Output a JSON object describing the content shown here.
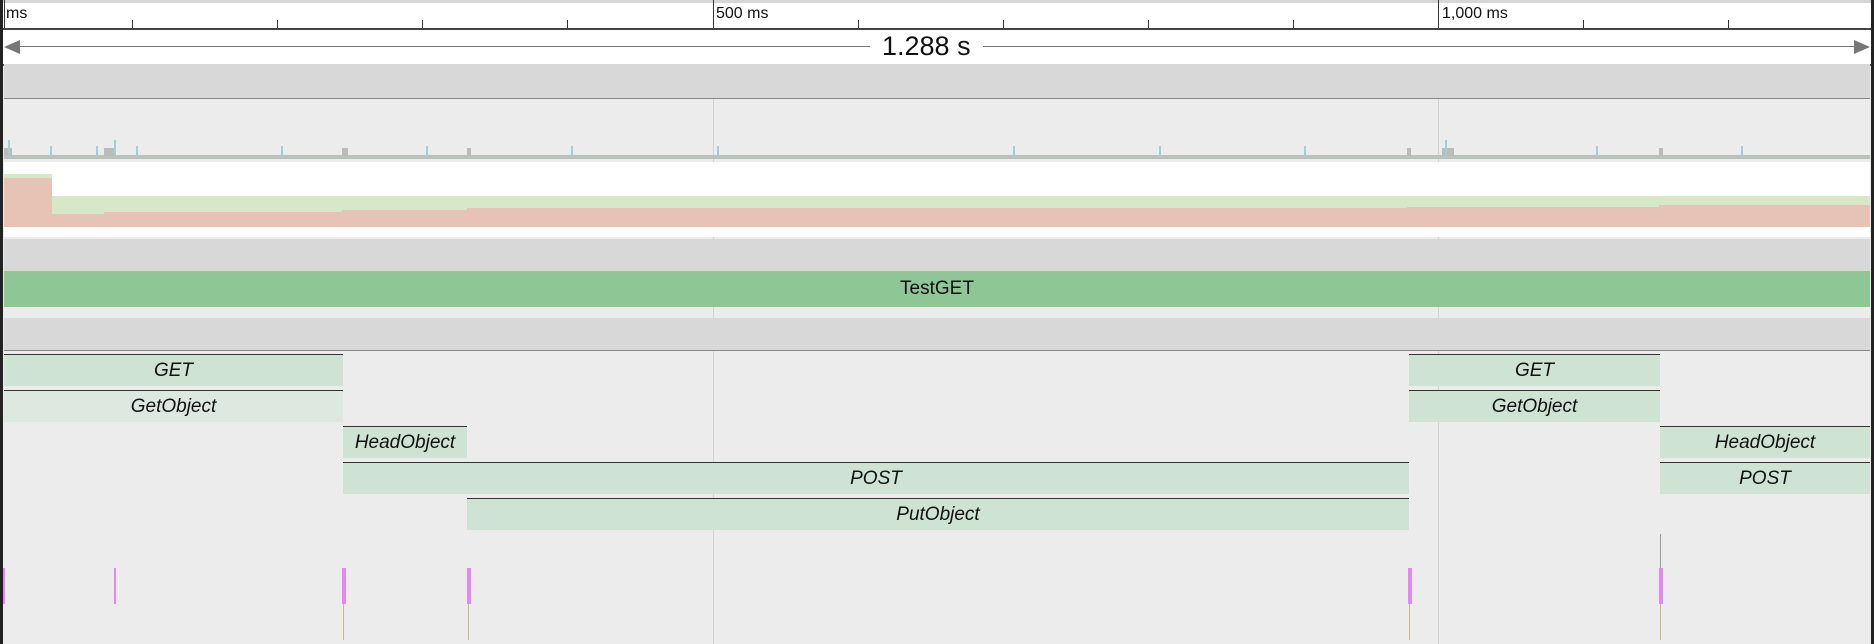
{
  "ruler": {
    "labels": {
      "start": "ms",
      "t500": "500 ms",
      "t1000": "1,000 ms"
    }
  },
  "duration": {
    "label": "1.288 s"
  },
  "tracks": {
    "test_slice": "TestGET",
    "slices": {
      "get_1": "GET",
      "getobject_1": "GetObject",
      "headobject_1": "HeadObject",
      "post_1": "POST",
      "putobject_1": "PutObject",
      "get_2": "GET",
      "getobject_2": "GetObject",
      "headobject_2": "HeadObject",
      "post_2": "POST"
    }
  },
  "colors": {
    "slice_fill": "#cfe3d5",
    "slice_fill_light": "#dde9e0",
    "test_fill": "#8ec696",
    "marker": "#e388f2",
    "mem_green": "#d6e8c7",
    "mem_red": "#e6c3b4"
  }
}
